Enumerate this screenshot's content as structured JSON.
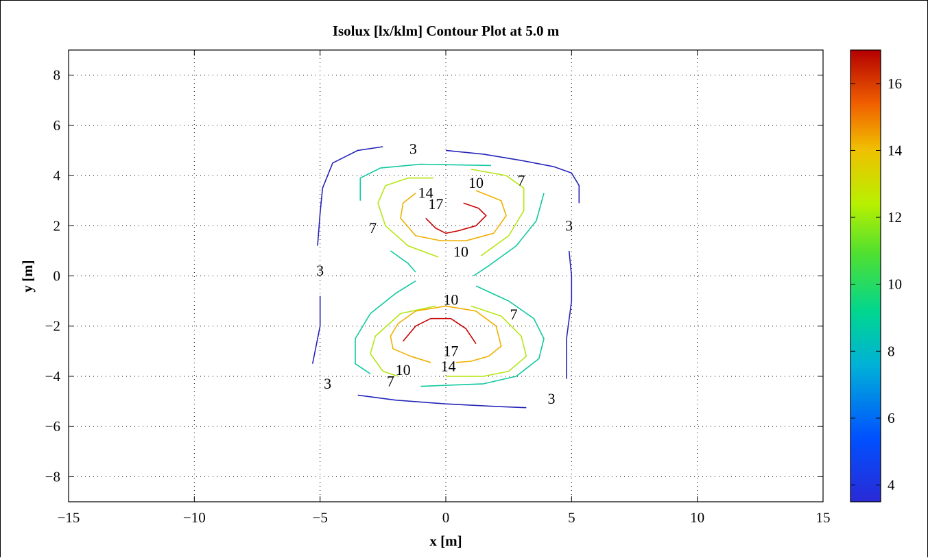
{
  "chart_data": {
    "type": "contour",
    "title": "Isolux [lx/klm] Contour Plot at 5.0 m",
    "xlabel": "x [m]",
    "ylabel": "y [m]",
    "xlim": [
      -15,
      15
    ],
    "ylim": [
      -9,
      9.0
    ],
    "xticks": [
      -15,
      -10,
      -5,
      0,
      5,
      10,
      15
    ],
    "yticks": [
      -8,
      -6,
      -4,
      -2,
      0,
      2,
      4,
      6,
      8
    ],
    "xtick_labels": [
      "−15",
      "−10",
      "−5",
      "0",
      "5",
      "10",
      "15"
    ],
    "ytick_labels": [
      "−8",
      "−6",
      "−4",
      "−2",
      "0",
      "2",
      "4",
      "6",
      "8"
    ],
    "grid": true,
    "colorbar": {
      "range": [
        3.5,
        17
      ],
      "ticks": [
        4,
        6,
        8,
        10,
        12,
        14,
        16
      ],
      "tick_labels": [
        "4",
        "6",
        "8",
        "10",
        "12",
        "14",
        "16"
      ],
      "colormap": "jet"
    },
    "levels": [
      {
        "value": 3,
        "color": "#2424b8",
        "segments": [
          [
            [
              -2.5,
              5.15
            ],
            [
              -3.5,
              5.0
            ],
            [
              -4.5,
              4.5
            ],
            [
              -4.9,
              3.5
            ],
            [
              -5.0,
              2.5
            ],
            [
              -5.1,
              1.2
            ]
          ],
          [
            [
              0.0,
              5.0
            ],
            [
              1.5,
              4.85
            ],
            [
              3.0,
              4.6
            ],
            [
              4.3,
              4.35
            ],
            [
              5.0,
              4.1
            ],
            [
              5.3,
              3.6
            ],
            [
              5.3,
              2.9
            ]
          ],
          [
            [
              4.9,
              1.0
            ],
            [
              5.0,
              0.0
            ],
            [
              5.0,
              -1.0
            ],
            [
              4.8,
              -2.5
            ],
            [
              4.8,
              -4.1
            ]
          ],
          [
            [
              -5.0,
              -0.8
            ],
            [
              -5.0,
              -2.0
            ],
            [
              -5.3,
              -3.5
            ]
          ],
          [
            [
              -3.5,
              -4.75
            ],
            [
              -2.0,
              -4.95
            ],
            [
              0.0,
              -5.1
            ],
            [
              2.0,
              -5.2
            ],
            [
              3.2,
              -5.25
            ]
          ]
        ],
        "labels": [
          [
            -1.3,
            5.05,
            "3"
          ],
          [
            4.9,
            2.0,
            "3"
          ],
          [
            -5.0,
            0.2,
            "3"
          ],
          [
            -4.7,
            -4.3,
            "3"
          ],
          [
            4.2,
            -4.9,
            "3"
          ]
        ]
      },
      {
        "value": 7,
        "color": "#10c8a0",
        "segments": [
          [
            [
              -3.4,
              3.0
            ],
            [
              -3.4,
              3.9
            ],
            [
              -2.6,
              4.3
            ],
            [
              -1.0,
              4.45
            ],
            [
              1.8,
              4.4
            ]
          ],
          [
            [
              3.9,
              3.3
            ],
            [
              3.6,
              2.2
            ],
            [
              2.8,
              1.2
            ],
            [
              1.7,
              0.4
            ],
            [
              1.1,
              0.0
            ]
          ],
          [
            [
              -2.2,
              1.0
            ],
            [
              -1.5,
              0.5
            ],
            [
              -1.2,
              0.15
            ]
          ],
          [
            [
              -1.2,
              -0.2
            ],
            [
              -2.0,
              -0.7
            ],
            [
              -3.0,
              -1.5
            ],
            [
              -3.6,
              -2.5
            ],
            [
              -3.6,
              -3.5
            ],
            [
              -3.0,
              -3.9
            ]
          ],
          [
            [
              1.2,
              -0.4
            ],
            [
              2.5,
              -1.0
            ],
            [
              3.5,
              -1.7
            ],
            [
              3.9,
              -2.5
            ],
            [
              3.7,
              -3.3
            ],
            [
              2.8,
              -4.0
            ],
            [
              1.5,
              -4.3
            ],
            [
              -1.0,
              -4.4
            ]
          ]
        ],
        "labels": [
          [
            3.0,
            3.8,
            "7"
          ],
          [
            -2.9,
            1.9,
            "7"
          ],
          [
            2.7,
            -1.55,
            "7"
          ],
          [
            -2.2,
            -4.2,
            "7"
          ]
        ]
      },
      {
        "value": 10,
        "color": "#b4e614",
        "segments": [
          [
            [
              1.0,
              4.25
            ],
            [
              2.4,
              4.0
            ],
            [
              3.1,
              3.5
            ],
            [
              3.1,
              2.6
            ],
            [
              2.5,
              1.6
            ],
            [
              1.4,
              0.8
            ]
          ],
          [
            [
              -0.3,
              0.75
            ],
            [
              -1.5,
              1.2
            ],
            [
              -2.4,
              2.0
            ],
            [
              -2.7,
              2.9
            ],
            [
              -2.4,
              3.6
            ],
            [
              -1.5,
              3.9
            ],
            [
              -0.5,
              3.9
            ]
          ],
          [
            [
              -0.4,
              -1.2
            ],
            [
              -1.8,
              -1.5
            ],
            [
              -2.8,
              -2.4
            ],
            [
              -3.0,
              -3.1
            ],
            [
              -2.5,
              -3.8
            ],
            [
              -1.9,
              -4.0
            ]
          ],
          [
            [
              1.0,
              -1.2
            ],
            [
              2.2,
              -1.6
            ],
            [
              3.0,
              -2.4
            ],
            [
              3.2,
              -3.2
            ],
            [
              2.5,
              -3.8
            ],
            [
              1.5,
              -4.0
            ],
            [
              0.0,
              -4.0
            ]
          ]
        ],
        "labels": [
          [
            1.2,
            3.7,
            "10"
          ],
          [
            0.6,
            0.95,
            "10"
          ],
          [
            0.2,
            -0.95,
            "10"
          ],
          [
            -1.7,
            -3.75,
            "10"
          ]
        ]
      },
      {
        "value": 14,
        "color": "#f0b000",
        "segments": [
          [
            [
              1.2,
              3.4
            ],
            [
              2.2,
              3.0
            ],
            [
              2.4,
              2.4
            ],
            [
              1.9,
              1.7
            ],
            [
              0.8,
              1.4
            ],
            [
              -0.2,
              1.4
            ],
            [
              -1.2,
              1.6
            ],
            [
              -1.8,
              2.3
            ],
            [
              -1.7,
              2.9
            ],
            [
              -1.2,
              3.3
            ]
          ],
          [
            [
              -1.2,
              -1.4
            ],
            [
              0.0,
              -1.2
            ],
            [
              1.2,
              -1.4
            ],
            [
              2.0,
              -2.0
            ],
            [
              2.2,
              -2.8
            ],
            [
              1.7,
              -3.2
            ],
            [
              1.0,
              -3.4
            ],
            [
              0.4,
              -3.45
            ]
          ],
          [
            [
              -0.6,
              -3.45
            ],
            [
              -1.4,
              -3.2
            ],
            [
              -2.1,
              -2.9
            ],
            [
              -2.2,
              -2.4
            ],
            [
              -1.9,
              -1.9
            ],
            [
              -1.2,
              -1.4
            ]
          ]
        ],
        "labels": [
          [
            -0.8,
            3.3,
            "14"
          ],
          [
            0.1,
            -3.6,
            "14"
          ]
        ]
      },
      {
        "value": 17,
        "color": "#c80000",
        "segments": [
          [
            [
              0.7,
              2.9
            ],
            [
              1.3,
              2.7
            ],
            [
              1.6,
              2.4
            ],
            [
              1.2,
              2.0
            ],
            [
              0.5,
              1.8
            ],
            [
              0.0,
              1.7
            ],
            [
              -0.4,
              1.9
            ],
            [
              -0.8,
              2.3
            ]
          ],
          [
            [
              -1.7,
              -2.6
            ],
            [
              -1.2,
              -2.0
            ],
            [
              -0.6,
              -1.7
            ],
            [
              0.2,
              -1.7
            ],
            [
              0.8,
              -2.1
            ],
            [
              1.2,
              -2.7
            ]
          ]
        ],
        "labels": [
          [
            -0.4,
            2.85,
            "17"
          ],
          [
            0.2,
            -3.0,
            "17"
          ]
        ]
      }
    ]
  }
}
